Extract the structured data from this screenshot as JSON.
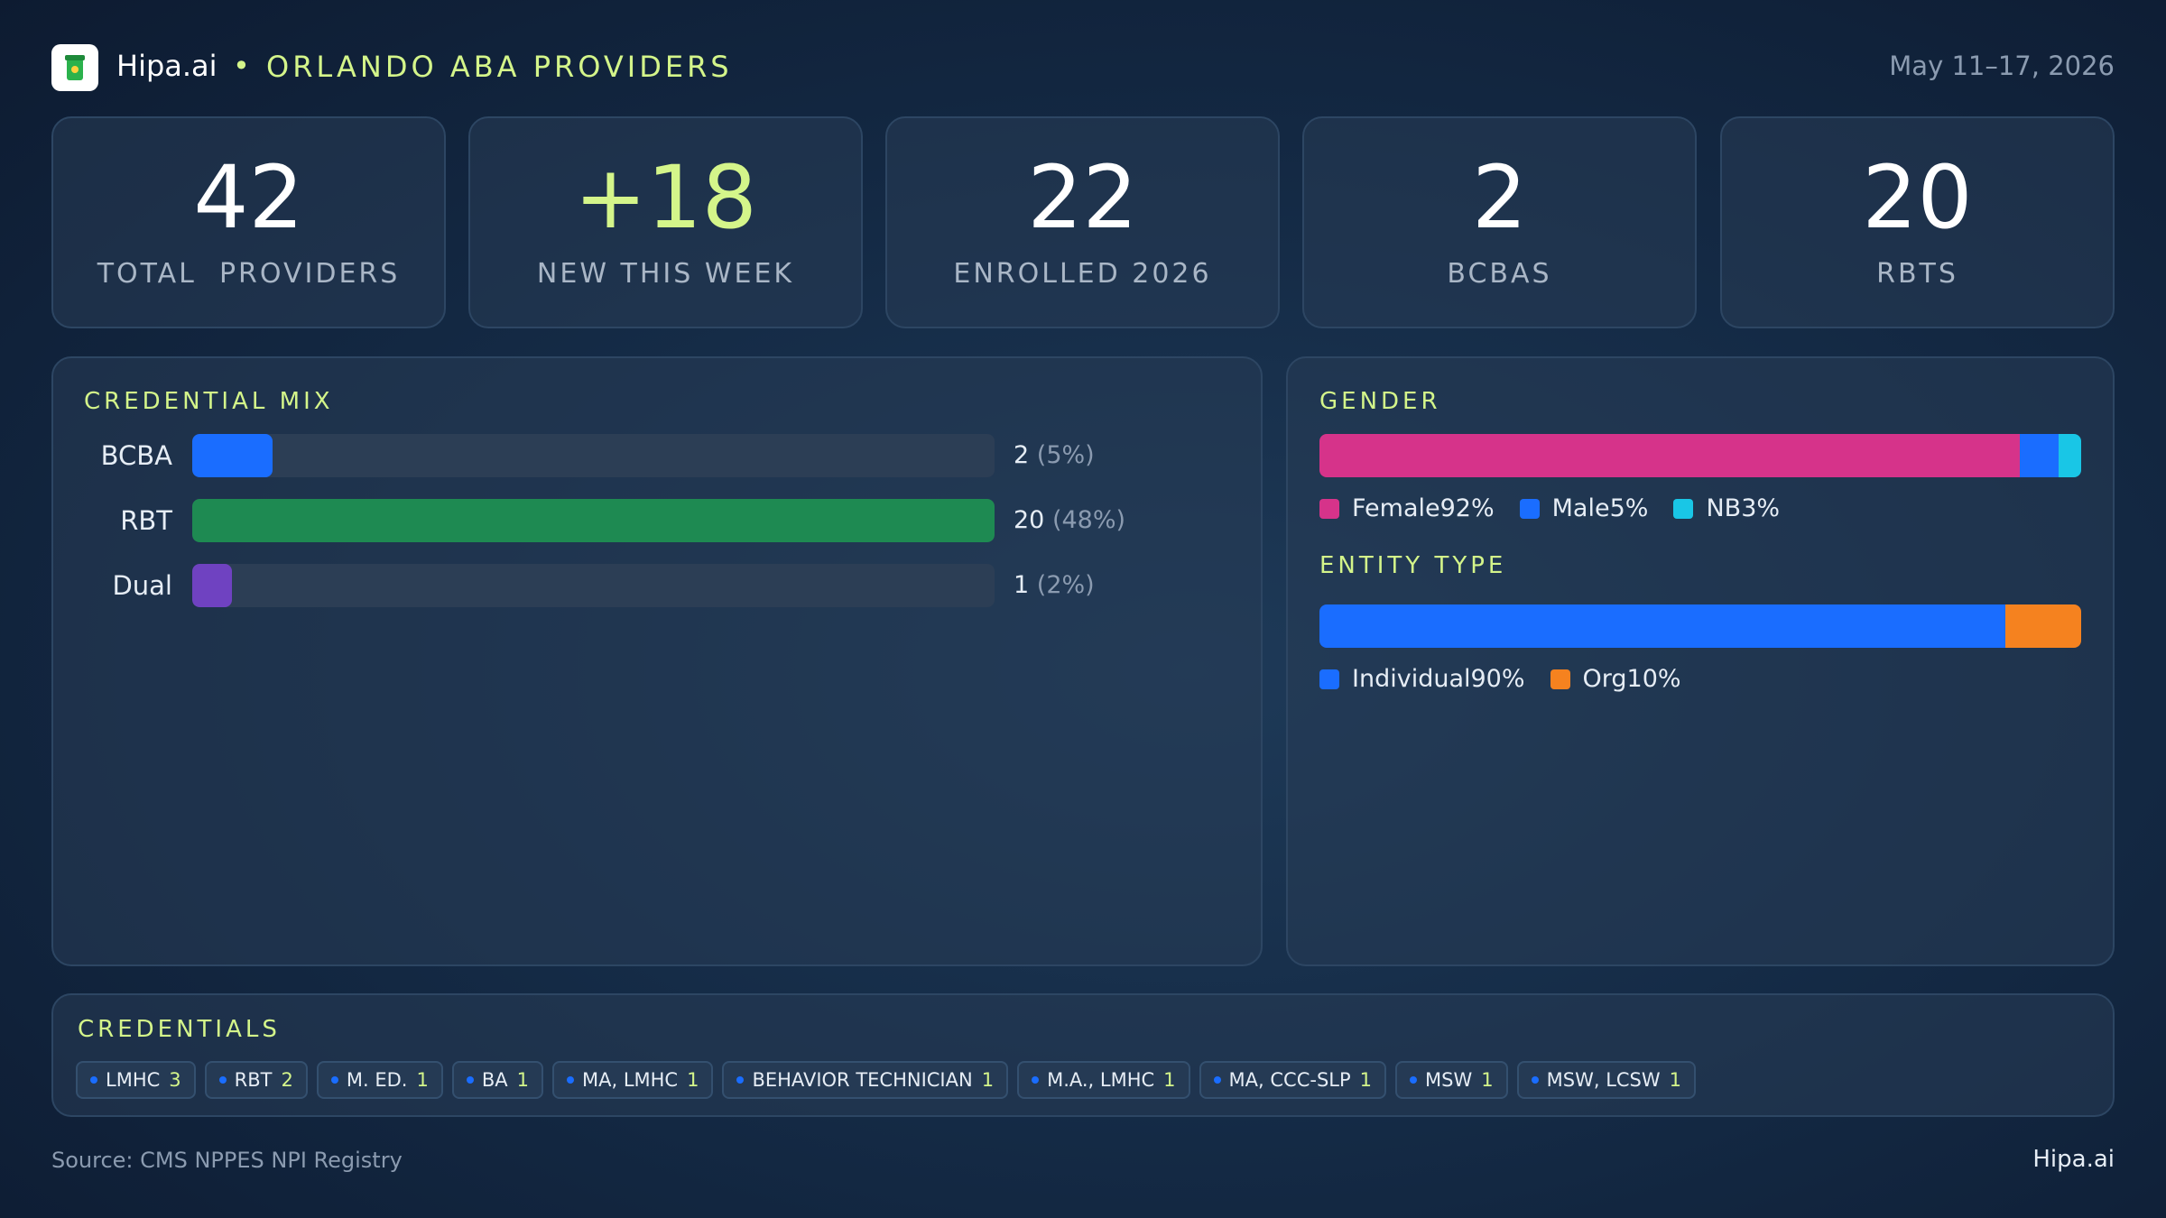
{
  "header": {
    "brand": "Hipa.ai",
    "title": "ORLANDO ABA PROVIDERS",
    "date": "May 11–17, 2026"
  },
  "kpis": [
    {
      "value": 42,
      "label": "TOTAL  PROVIDERS"
    },
    {
      "value": "+18",
      "label": "NEW THIS WEEK",
      "color": "#d4f58a"
    },
    {
      "value": 22,
      "label": "ENROLLED 2026"
    },
    {
      "value": 2,
      "label": "BCBAS"
    },
    {
      "value": 20,
      "label": "RBTS"
    }
  ],
  "chart_data": [
    {
      "type": "bar",
      "orientation": "horizontal",
      "title": "CREDENTIAL MIX",
      "categories": [
        "BCBA",
        "RBT",
        "Dual"
      ],
      "values": [
        2,
        20,
        1
      ],
      "percent_labels": [
        "(5%)",
        "(48%)",
        "(2%)"
      ],
      "colors": [
        "#1a6dff",
        "#1e8a52",
        "#6f42c1"
      ],
      "xlim": [
        0,
        20
      ]
    },
    {
      "type": "stacked-bar",
      "title": "GENDER",
      "xlim": [
        0,
        100
      ],
      "series": [
        {
          "name": "Female",
          "color": "#d6338a",
          "values": [
            92
          ],
          "value_labels": [
            "92%"
          ]
        },
        {
          "name": "Male",
          "color": "#1a6dff",
          "values": [
            5
          ],
          "value_labels": [
            "5%"
          ]
        },
        {
          "name": "NB",
          "color": "#19c6e6",
          "values": [
            3
          ],
          "value_labels": [
            "3%"
          ]
        }
      ]
    },
    {
      "type": "stacked-bar",
      "title": "ENTITY TYPE",
      "xlim": [
        0,
        100
      ],
      "series": [
        {
          "name": "Individual",
          "color": "#1a6dff",
          "values": [
            90
          ],
          "value_labels": [
            "90%"
          ]
        },
        {
          "name": "Org",
          "color": "#f5821f",
          "values": [
            10
          ],
          "value_labels": [
            "10%"
          ]
        }
      ]
    }
  ],
  "credentials": {
    "title": "CREDENTIALS",
    "items": [
      {
        "label": "LMHC",
        "count": 3
      },
      {
        "label": "RBT",
        "count": 2
      },
      {
        "label": "M. ED.",
        "count": 1
      },
      {
        "label": "BA",
        "count": 1
      },
      {
        "label": "MA, LMHC",
        "count": 1
      },
      {
        "label": "BEHAVIOR TECHNICIAN",
        "count": 1
      },
      {
        "label": "M.A., LMHC",
        "count": 1
      },
      {
        "label": "MA, CCC-SLP",
        "count": 1
      },
      {
        "label": "MSW",
        "count": 1
      },
      {
        "label": "MSW, LCSW",
        "count": 1
      }
    ]
  },
  "footer": {
    "source": "Source: CMS NPPES NPI Registry",
    "brand": "Hipa.ai"
  }
}
